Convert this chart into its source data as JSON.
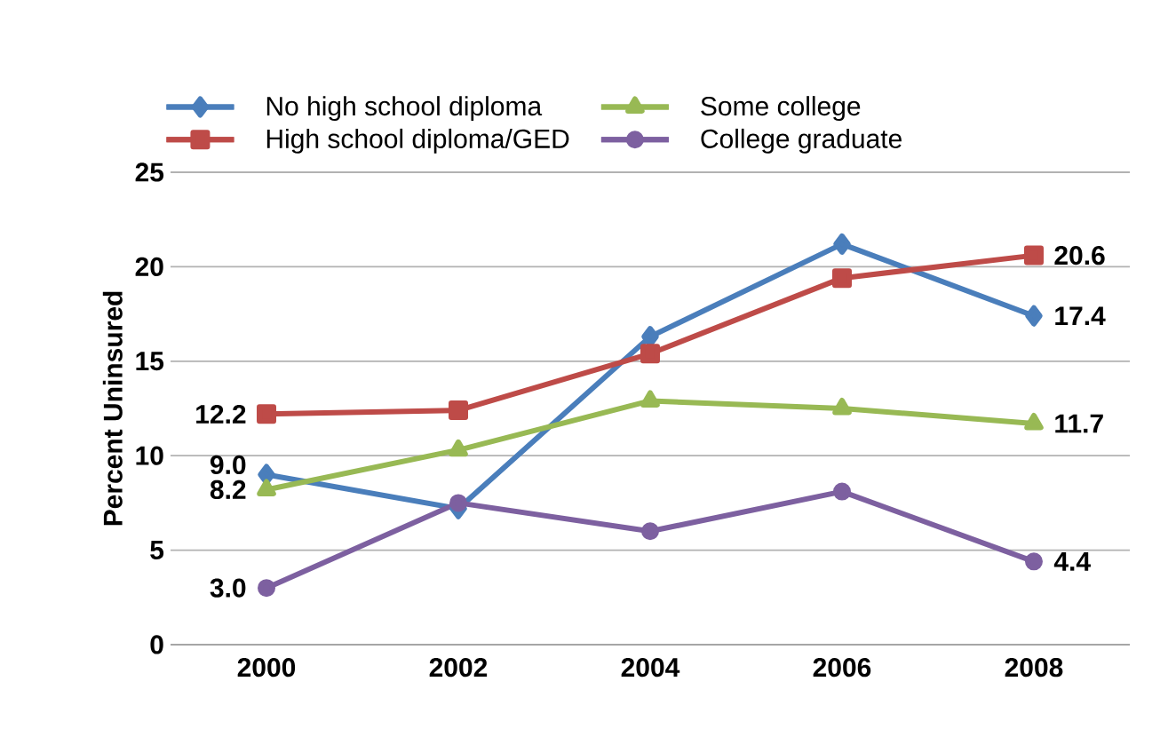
{
  "chart_data": {
    "type": "line",
    "ylabel": "Percent Uninsured",
    "categories": [
      "2000",
      "2002",
      "2004",
      "2006",
      "2008"
    ],
    "series": [
      {
        "name": "No high school diploma",
        "color": "#4a7ebb",
        "marker": "diamond",
        "values": [
          9.0,
          7.2,
          16.3,
          21.2,
          17.4
        ],
        "value_labels": [
          "9.0",
          null,
          null,
          null,
          "17.4"
        ]
      },
      {
        "name": "High school diploma/GED",
        "color": "#be4b48",
        "marker": "square",
        "values": [
          12.2,
          12.4,
          15.4,
          19.4,
          20.6
        ],
        "value_labels": [
          "12.2",
          null,
          null,
          null,
          "20.6"
        ]
      },
      {
        "name": "Some college",
        "color": "#98b954",
        "marker": "triangle",
        "values": [
          8.2,
          10.3,
          12.9,
          12.5,
          11.7
        ],
        "value_labels": [
          "8.2",
          null,
          null,
          null,
          "11.7"
        ]
      },
      {
        "name": "College graduate",
        "color": "#7d60a0",
        "marker": "circle",
        "values": [
          3.0,
          7.5,
          6.0,
          8.1,
          4.4
        ],
        "value_labels": [
          "3.0",
          null,
          null,
          null,
          "4.4"
        ]
      }
    ],
    "ylim": [
      0,
      25
    ],
    "yticks": [
      0,
      5,
      10,
      15,
      20,
      25
    ],
    "grid": "y",
    "legend": "top"
  }
}
